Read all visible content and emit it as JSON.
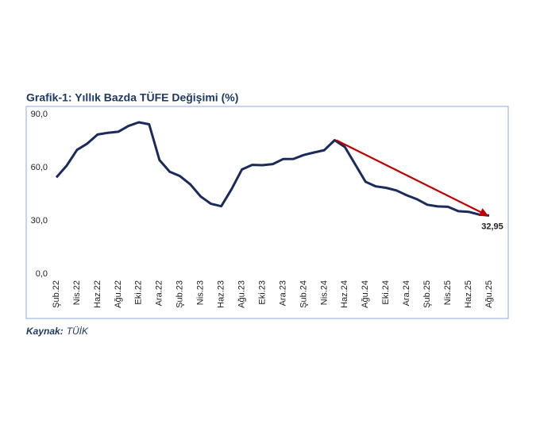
{
  "chart_data": {
    "type": "line",
    "title": "Grafik-1: Yıllık Bazda TÜFE Değişimi (%)",
    "source": {
      "label": "Kaynak:",
      "text": "TÜİK"
    },
    "categories": [
      "Şub.22",
      null,
      "Nis.22",
      null,
      "Haz.22",
      null,
      "Ağu.22",
      null,
      "Eki.22",
      null,
      "Ara.22",
      null,
      "Şub.23",
      null,
      "Nis.23",
      null,
      "Haz.23",
      null,
      "Ağu.23",
      null,
      "Eki.23",
      null,
      "Ara.23",
      null,
      "Şub.24",
      null,
      "Nis.24",
      null,
      "Haz.24",
      null,
      "Ağu.24",
      null,
      "Eki.24",
      null,
      "Ara.24",
      null,
      "Şub.25",
      null,
      "Nis.25",
      null,
      "Haz.25",
      null,
      "Ağu.25"
    ],
    "values": [
      54.44,
      61.14,
      69.97,
      73.5,
      78.62,
      79.6,
      80.21,
      83.45,
      85.51,
      84.39,
      64.27,
      57.68,
      55.18,
      50.51,
      43.68,
      39.59,
      38.21,
      47.83,
      58.94,
      61.53,
      61.36,
      61.98,
      64.77,
      64.86,
      67.07,
      68.5,
      69.8,
      75.45,
      71.6,
      61.78,
      51.97,
      49.38,
      48.58,
      47.09,
      44.38,
      42.12,
      39.05,
      38.1,
      37.86,
      35.41,
      35.05,
      33.52,
      32.95
    ],
    "value_labels": [
      null,
      null,
      null,
      null,
      null,
      null,
      null,
      null,
      null,
      null,
      null,
      null,
      null,
      null,
      null,
      null,
      null,
      null,
      null,
      null,
      null,
      null,
      null,
      null,
      null,
      null,
      null,
      null,
      null,
      null,
      null,
      null,
      null,
      null,
      null,
      null,
      null,
      null,
      null,
      null,
      null,
      null,
      "32,95"
    ],
    "color": "#1b2a5c",
    "arrow": {
      "from": 27,
      "to": 42,
      "color": "#c00000"
    },
    "ylim": [
      0,
      90
    ],
    "yticks": [
      {
        "value": 0,
        "label": "0,0"
      },
      {
        "value": 30,
        "label": "30,0"
      },
      {
        "value": 60,
        "label": "60,0"
      },
      {
        "value": 90,
        "label": "90,0"
      }
    ]
  }
}
